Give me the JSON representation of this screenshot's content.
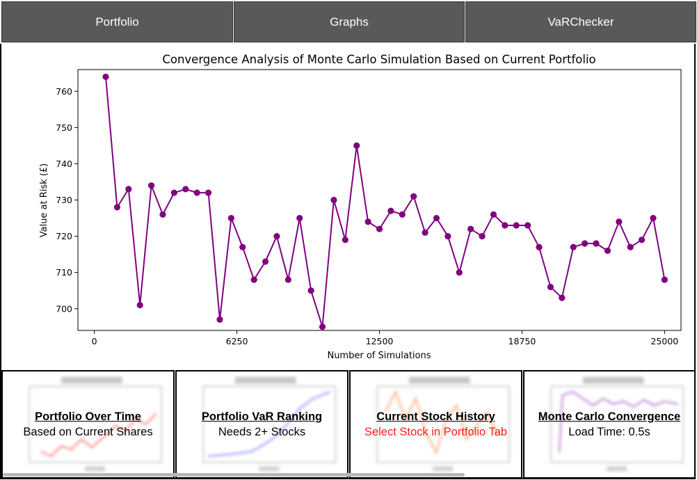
{
  "tabs": [
    {
      "label": "Portfolio"
    },
    {
      "label": "Graphs"
    },
    {
      "label": "VaRChecker"
    }
  ],
  "colors": {
    "tab_bg": "#595959",
    "series": "#800080",
    "warning_text": "#ff1a1a"
  },
  "chart_data": {
    "type": "line",
    "title": "Convergence Analysis of Monte Carlo Simulation Based on Current Portfolio",
    "xlabel": "Number of Simulations",
    "ylabel": "Value at Risk (£)",
    "xlim": [
      -720,
      25720
    ],
    "ylim": [
      694,
      766
    ],
    "xticks": [
      0,
      6250,
      12500,
      18750,
      25000
    ],
    "xtick_labels": [
      "0",
      "6250",
      "12500",
      "18750",
      "25000"
    ],
    "yticks": [
      700,
      710,
      720,
      730,
      740,
      750,
      760
    ],
    "marker": "circle",
    "grid": false,
    "x": [
      500,
      1000,
      1500,
      2000,
      2500,
      3000,
      3500,
      4000,
      4500,
      5000,
      5500,
      6000,
      6500,
      7000,
      7500,
      8000,
      8500,
      9000,
      9500,
      10000,
      10500,
      11000,
      11500,
      12000,
      12500,
      13000,
      13500,
      14000,
      14500,
      15000,
      15500,
      16000,
      16500,
      17000,
      17500,
      18000,
      18500,
      19000,
      19500,
      20000,
      20500,
      21000,
      21500,
      22000,
      22500,
      23000,
      23500,
      24000,
      24500,
      25000
    ],
    "values": [
      764,
      728,
      733,
      701,
      734,
      726,
      732,
      733,
      732,
      732,
      697,
      725,
      717,
      708,
      713,
      720,
      708,
      725,
      705,
      695,
      730,
      719,
      745,
      724,
      722,
      727,
      726,
      731,
      721,
      725,
      720,
      710,
      722,
      720,
      726,
      723,
      723,
      723,
      717,
      706,
      703,
      717,
      718,
      718,
      716,
      724,
      717,
      719,
      725,
      708
    ]
  },
  "cards": [
    {
      "title": "Portfolio Over Time",
      "subtitle": "Based on Current Shares",
      "thumb_color": "#ff4d4d"
    },
    {
      "title": "Portfolio VaR Ranking",
      "subtitle": "Needs 2+ Stocks",
      "thumb_color": "#6b6bff"
    },
    {
      "title": "Current Stock History",
      "subtitle": "Select Stock in Portfolio Tab",
      "thumb_color": "#ff8a4d"
    },
    {
      "title": "Monte Carlo Convergence",
      "subtitle": "Load Time: 0.5s",
      "thumb_color": "#a04dc0"
    }
  ]
}
